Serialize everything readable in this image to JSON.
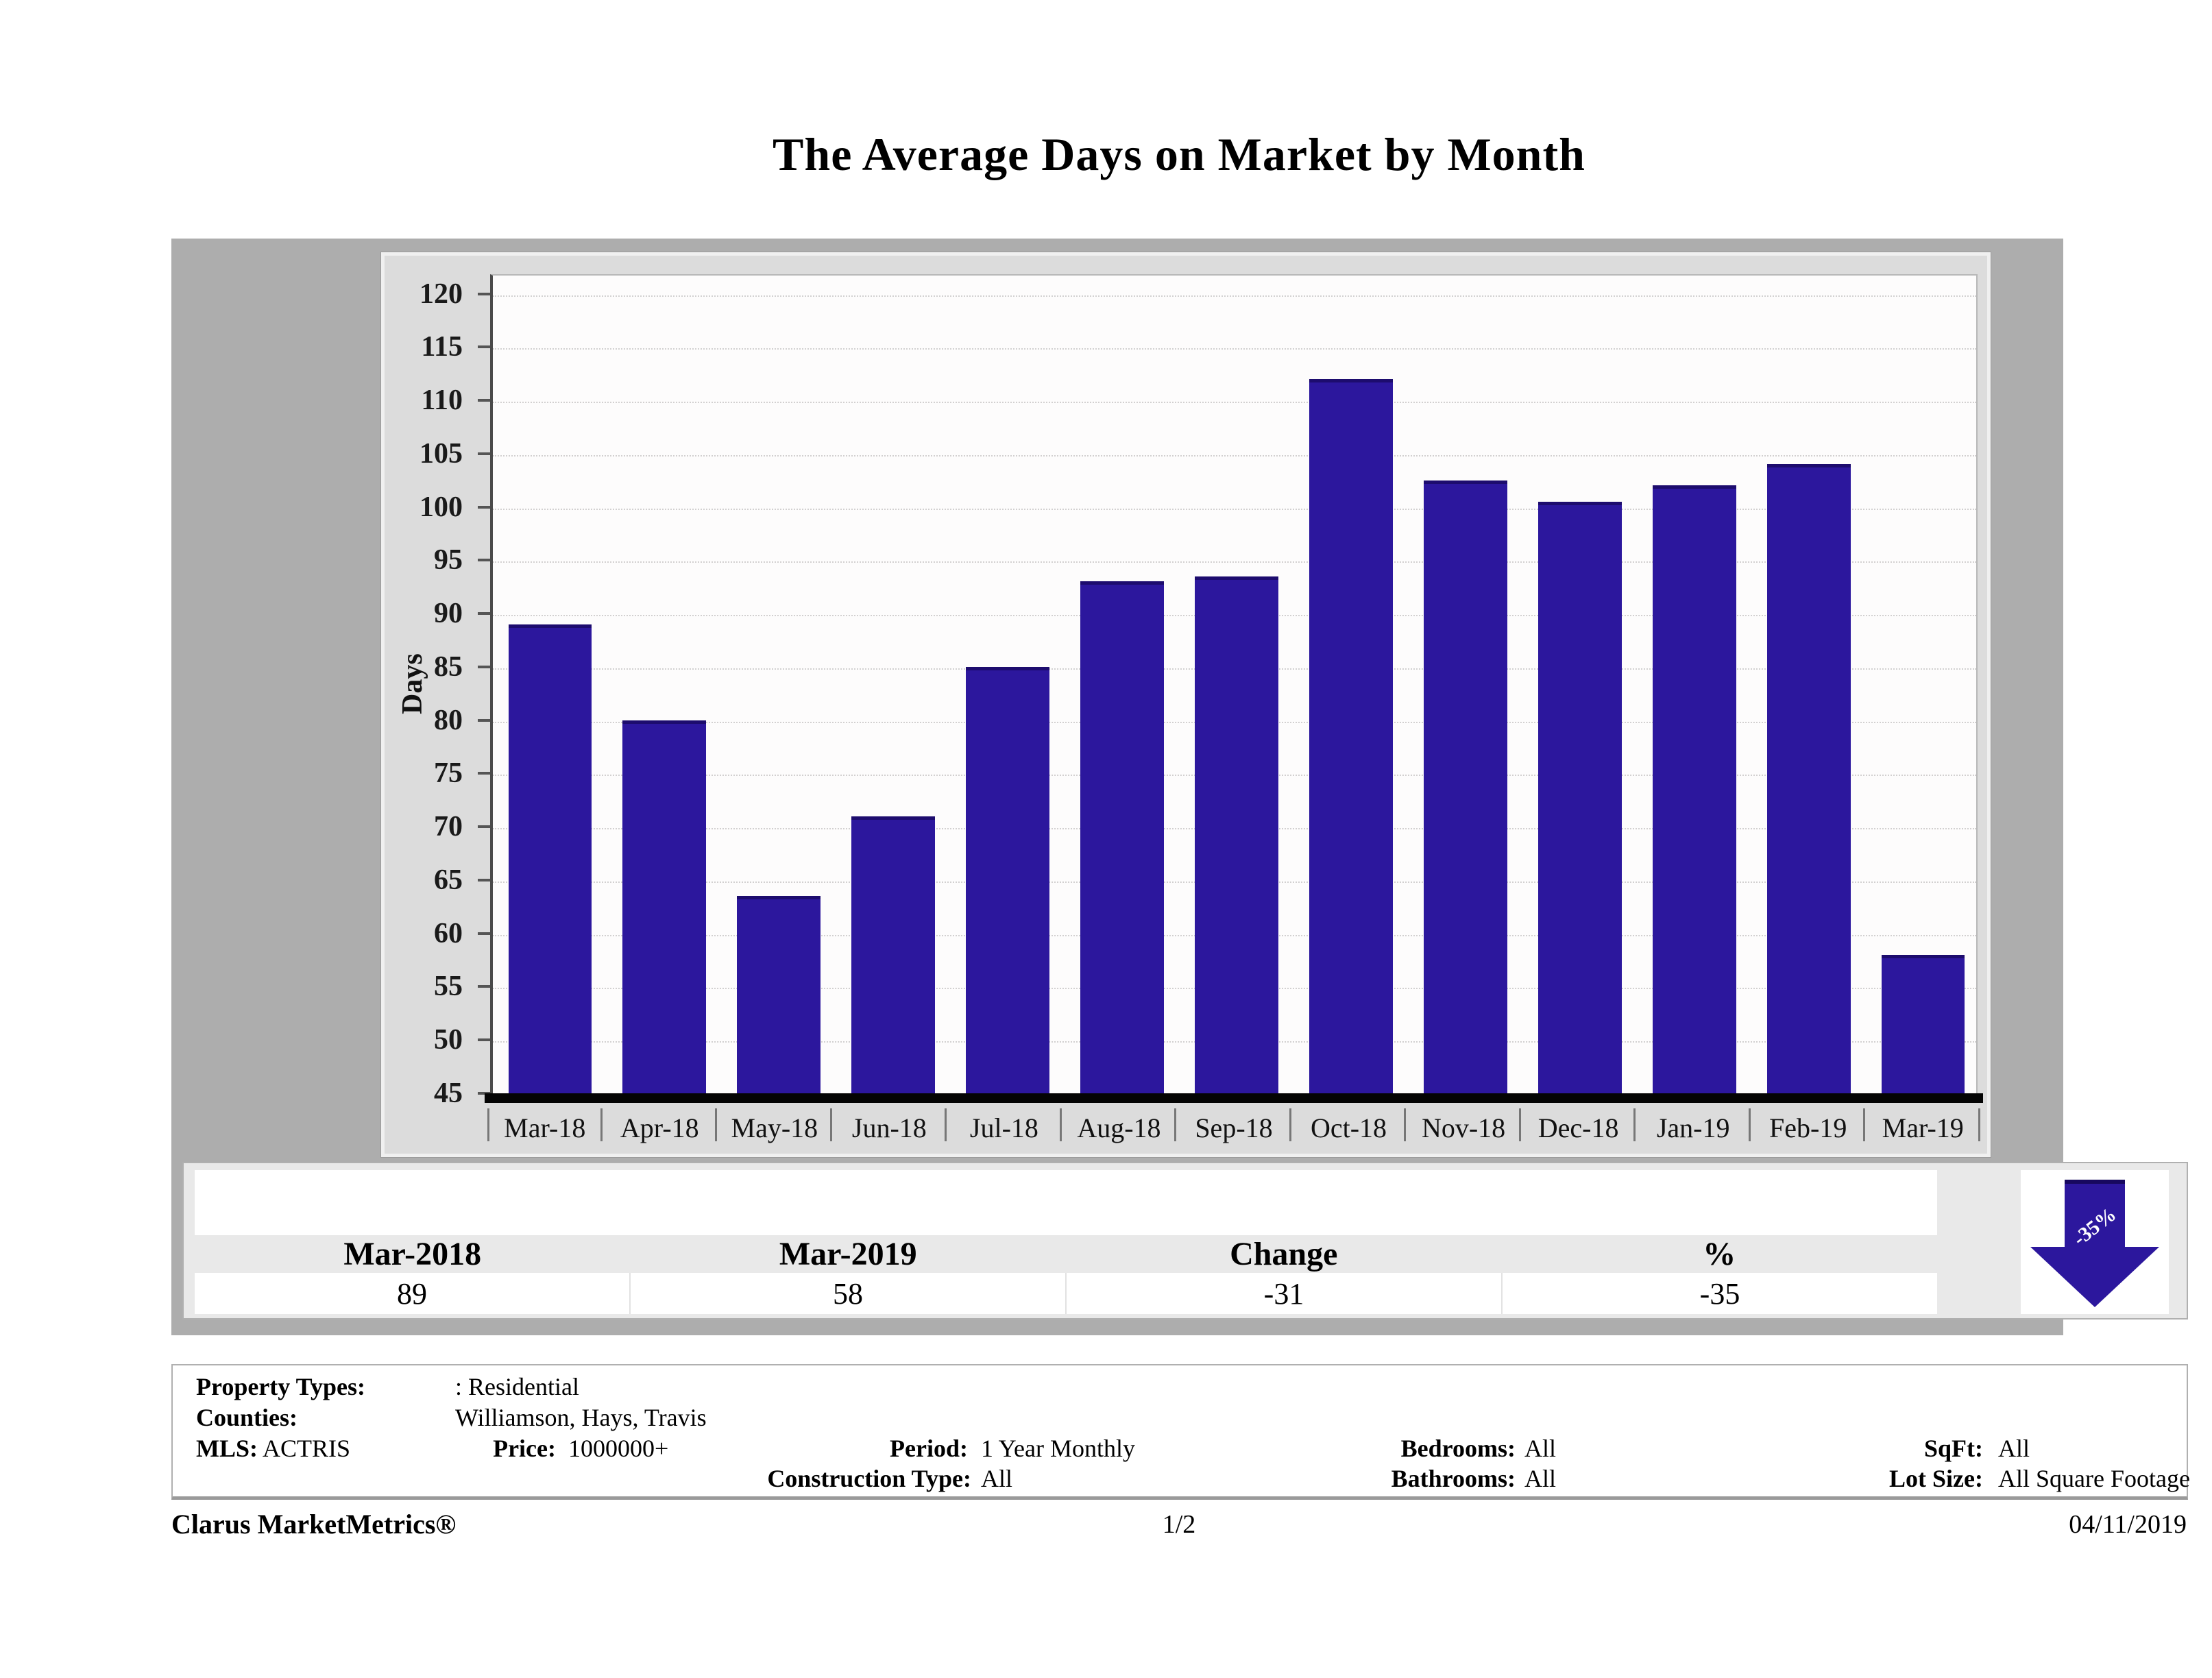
{
  "title": "The Average Days on Market by Month",
  "chart_data": {
    "type": "bar",
    "title": "The Average Days on Market by Month",
    "categories": [
      "Mar-18",
      "Apr-18",
      "May-18",
      "Jun-18",
      "Jul-18",
      "Aug-18",
      "Sep-18",
      "Oct-18",
      "Nov-18",
      "Dec-18",
      "Jan-19",
      "Feb-19",
      "Mar-19"
    ],
    "values": [
      89,
      80,
      63.5,
      71,
      85,
      93,
      93.5,
      112,
      102.5,
      100.5,
      102,
      104,
      58
    ],
    "xlabel": "",
    "ylabel": "Days",
    "ylim": [
      45,
      120
    ],
    "ytick_step": 5,
    "grid": "horizontal-dotted",
    "legend": "none",
    "bar_color": "#2c179d"
  },
  "summary_table": {
    "headers": [
      "Mar-2018",
      "Mar-2019",
      "Change",
      "%"
    ],
    "values": [
      "89",
      "58",
      "-31",
      "-35"
    ],
    "arrow_label": "-35%",
    "arrow_direction": "down"
  },
  "filters": {
    "property_types": {
      "label": "Property Types:",
      "value": ": Residential"
    },
    "counties": {
      "label": "Counties:",
      "value": "Williamson, Hays, Travis"
    },
    "mls": {
      "label": "MLS:",
      "value": "ACTRIS"
    },
    "price": {
      "label": "Price:",
      "value": "1000000+"
    },
    "period": {
      "label": "Period:",
      "value": "1 Year Monthly"
    },
    "construction_type": {
      "label": "Construction Type:",
      "value": "All"
    },
    "bedrooms": {
      "label": "Bedrooms:",
      "value": "All"
    },
    "bathrooms": {
      "label": "Bathrooms:",
      "value": "All"
    },
    "sqft": {
      "label": "SqFt:",
      "value": "All"
    },
    "lot_size": {
      "label": "Lot Size:",
      "value": "All Square Footage"
    }
  },
  "footer": {
    "brand": "Clarus MarketMetrics®",
    "page": "1/2",
    "date": "04/11/2019"
  },
  "colors": {
    "bar": "#2c179d",
    "panel_bg": "#dcdcdc",
    "band_bg": "#adadad",
    "table_bg": "#e9e9e9"
  }
}
